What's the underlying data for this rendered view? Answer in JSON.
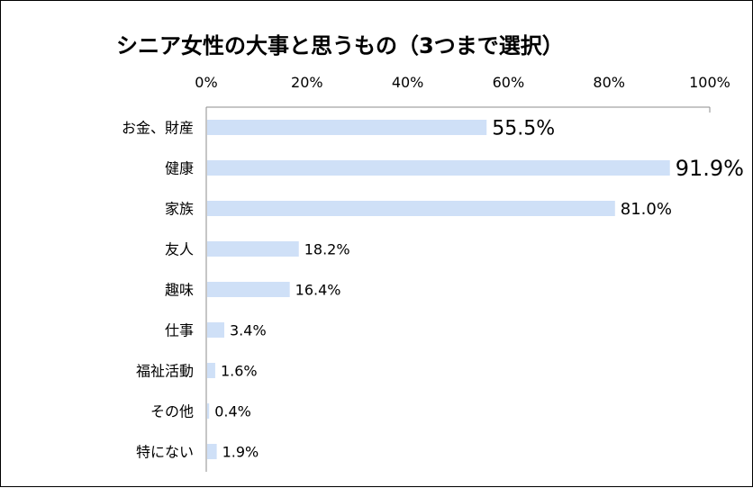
{
  "chart_data": {
    "type": "bar",
    "orientation": "horizontal",
    "title": "シニア女性の大事と思うもの（3つまで選択）",
    "categories": [
      "お金、財産",
      "健康",
      "家族",
      "友人",
      "趣味",
      "仕事",
      "福祉活動",
      "その他",
      "特にない"
    ],
    "values": [
      55.5,
      91.9,
      81.0,
      18.2,
      16.4,
      3.4,
      1.6,
      0.4,
      1.9
    ],
    "value_labels": [
      "55.5%",
      "91.9%",
      "81.0%",
      "18.2%",
      "16.4%",
      "3.4%",
      "1.6%",
      "0.4%",
      "1.9%"
    ],
    "x_ticks": [
      "0%",
      "20%",
      "40%",
      "60%",
      "80%",
      "100%"
    ],
    "xlim": [
      0,
      100
    ],
    "x_axis_position": "top",
    "grid": false,
    "legend": "none",
    "bar_color": "#cfe0f7",
    "highlight_color": "#e01b1b",
    "highlight_index": 1
  }
}
